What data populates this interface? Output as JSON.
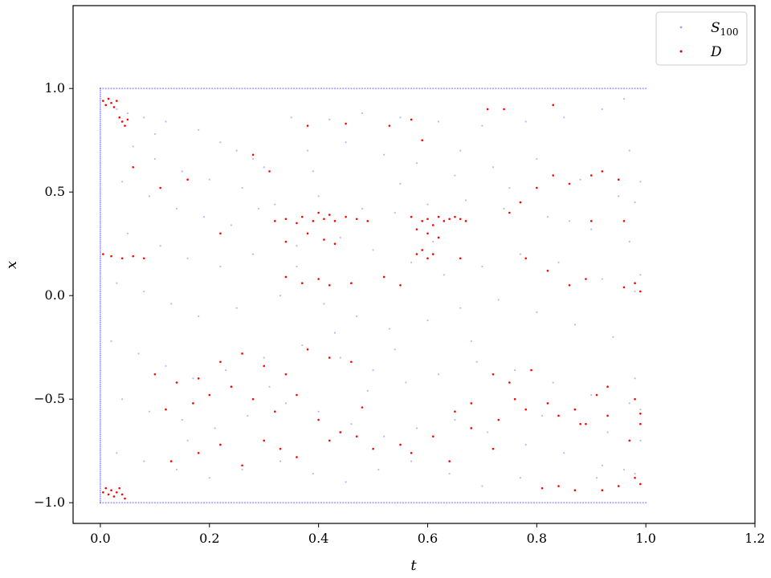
{
  "chart_data": {
    "type": "scatter",
    "xlabel": "t",
    "ylabel": "x",
    "xlim": [
      -0.05,
      1.2
    ],
    "ylim": [
      -1.1,
      1.4
    ],
    "xticks": [
      "0.0",
      "0.2",
      "0.4",
      "0.6",
      "0.8",
      "1.0",
      "1.2"
    ],
    "xtick_values": [
      0.0,
      0.2,
      0.4,
      0.6,
      0.8,
      1.0,
      1.2
    ],
    "yticks": [
      "−1.0",
      "−0.5",
      "0.0",
      "0.5",
      "1.0"
    ],
    "ytick_values": [
      -1.0,
      -0.5,
      0.0,
      0.5,
      1.0
    ],
    "grid": false,
    "legend_position": "top-right",
    "series": [
      {
        "name": "S",
        "name_subscript": "100",
        "color": "#6464f0",
        "points": [
          [
            0.03,
            0.9
          ],
          [
            0.05,
            0.88
          ],
          [
            0.08,
            0.86
          ],
          [
            0.12,
            0.84
          ],
          [
            0.18,
            0.8
          ],
          [
            0.22,
            0.74
          ],
          [
            0.25,
            0.7
          ],
          [
            0.28,
            0.66
          ],
          [
            0.35,
            0.86
          ],
          [
            0.42,
            0.85
          ],
          [
            0.48,
            0.88
          ],
          [
            0.55,
            0.86
          ],
          [
            0.62,
            0.84
          ],
          [
            0.7,
            0.82
          ],
          [
            0.78,
            0.84
          ],
          [
            0.85,
            0.86
          ],
          [
            0.92,
            0.9
          ],
          [
            0.96,
            0.95
          ],
          [
            0.06,
            0.72
          ],
          [
            0.1,
            0.66
          ],
          [
            0.15,
            0.6
          ],
          [
            0.2,
            0.56
          ],
          [
            0.3,
            0.62
          ],
          [
            0.38,
            0.7
          ],
          [
            0.45,
            0.74
          ],
          [
            0.52,
            0.68
          ],
          [
            0.58,
            0.64
          ],
          [
            0.65,
            0.58
          ],
          [
            0.72,
            0.62
          ],
          [
            0.8,
            0.66
          ],
          [
            0.88,
            0.56
          ],
          [
            0.95,
            0.48
          ],
          [
            0.98,
            0.45
          ],
          [
            0.04,
            0.55
          ],
          [
            0.09,
            0.48
          ],
          [
            0.14,
            0.42
          ],
          [
            0.19,
            0.38
          ],
          [
            0.24,
            0.34
          ],
          [
            0.32,
            0.44
          ],
          [
            0.4,
            0.48
          ],
          [
            0.48,
            0.42
          ],
          [
            0.54,
            0.4
          ],
          [
            0.6,
            0.44
          ],
          [
            0.67,
            0.46
          ],
          [
            0.74,
            0.42
          ],
          [
            0.82,
            0.38
          ],
          [
            0.9,
            0.32
          ],
          [
            0.97,
            0.26
          ],
          [
            0.05,
            0.3
          ],
          [
            0.11,
            0.24
          ],
          [
            0.16,
            0.18
          ],
          [
            0.22,
            0.14
          ],
          [
            0.28,
            0.2
          ],
          [
            0.36,
            0.24
          ],
          [
            0.44,
            0.28
          ],
          [
            0.5,
            0.22
          ],
          [
            0.57,
            0.16
          ],
          [
            0.63,
            0.1
          ],
          [
            0.7,
            0.14
          ],
          [
            0.77,
            0.2
          ],
          [
            0.84,
            0.16
          ],
          [
            0.92,
            0.08
          ],
          [
            0.98,
            0.02
          ],
          [
            0.03,
            0.06
          ],
          [
            0.08,
            0.02
          ],
          [
            0.13,
            -0.04
          ],
          [
            0.18,
            -0.1
          ],
          [
            0.25,
            -0.06
          ],
          [
            0.33,
            0.0
          ],
          [
            0.41,
            -0.04
          ],
          [
            0.47,
            -0.1
          ],
          [
            0.53,
            -0.16
          ],
          [
            0.6,
            -0.12
          ],
          [
            0.66,
            -0.06
          ],
          [
            0.73,
            -0.02
          ],
          [
            0.8,
            -0.08
          ],
          [
            0.87,
            -0.14
          ],
          [
            0.94,
            -0.2
          ],
          [
            0.02,
            -0.22
          ],
          [
            0.07,
            -0.28
          ],
          [
            0.12,
            -0.34
          ],
          [
            0.17,
            -0.4
          ],
          [
            0.23,
            -0.36
          ],
          [
            0.3,
            -0.3
          ],
          [
            0.37,
            -0.24
          ],
          [
            0.44,
            -0.3
          ],
          [
            0.5,
            -0.36
          ],
          [
            0.56,
            -0.42
          ],
          [
            0.62,
            -0.38
          ],
          [
            0.69,
            -0.32
          ],
          [
            0.76,
            -0.36
          ],
          [
            0.83,
            -0.42
          ],
          [
            0.9,
            -0.48
          ],
          [
            0.97,
            -0.52
          ],
          [
            0.04,
            -0.5
          ],
          [
            0.09,
            -0.56
          ],
          [
            0.15,
            -0.6
          ],
          [
            0.21,
            -0.64
          ],
          [
            0.27,
            -0.58
          ],
          [
            0.34,
            -0.52
          ],
          [
            0.4,
            -0.56
          ],
          [
            0.46,
            -0.62
          ],
          [
            0.52,
            -0.68
          ],
          [
            0.58,
            -0.64
          ],
          [
            0.65,
            -0.6
          ],
          [
            0.71,
            -0.66
          ],
          [
            0.78,
            -0.72
          ],
          [
            0.85,
            -0.76
          ],
          [
            0.92,
            -0.82
          ],
          [
            0.98,
            -0.86
          ],
          [
            0.03,
            -0.76
          ],
          [
            0.08,
            -0.8
          ],
          [
            0.14,
            -0.84
          ],
          [
            0.2,
            -0.88
          ],
          [
            0.26,
            -0.84
          ],
          [
            0.33,
            -0.8
          ],
          [
            0.39,
            -0.86
          ],
          [
            0.45,
            -0.9
          ],
          [
            0.51,
            -0.84
          ],
          [
            0.57,
            -0.8
          ],
          [
            0.64,
            -0.86
          ],
          [
            0.7,
            -0.92
          ],
          [
            0.77,
            -0.88
          ],
          [
            0.84,
            -0.92
          ],
          [
            0.91,
            -0.88
          ],
          [
            0.96,
            -0.84
          ],
          [
            0.99,
            -0.7
          ],
          [
            0.99,
            -0.55
          ],
          [
            0.98,
            -0.4
          ],
          [
            0.99,
            0.1
          ],
          [
            0.99,
            0.55
          ],
          [
            0.97,
            0.7
          ],
          [
            0.29,
            0.42
          ],
          [
            0.36,
            0.14
          ],
          [
            0.43,
            -0.18
          ],
          [
            0.49,
            -0.46
          ],
          [
            0.55,
            0.54
          ],
          [
            0.61,
            0.26
          ],
          [
            0.68,
            -0.22
          ],
          [
            0.75,
            0.52
          ],
          [
            0.81,
            -0.58
          ],
          [
            0.86,
            0.36
          ],
          [
            0.93,
            -0.66
          ],
          [
            0.1,
            0.78
          ],
          [
            0.16,
            -0.7
          ],
          [
            0.26,
            0.52
          ],
          [
            0.31,
            -0.44
          ],
          [
            0.39,
            0.6
          ],
          [
            0.54,
            -0.26
          ],
          [
            0.66,
            0.7
          ]
        ],
        "boundary_t0": [
          -1.0,
          -0.9,
          -0.8,
          -0.7,
          -0.6,
          -0.5,
          -0.4,
          -0.3,
          -0.2,
          -0.1,
          0.0,
          0.1,
          0.2,
          0.3,
          0.4,
          0.5,
          0.6,
          0.7,
          0.8,
          0.9,
          1.0
        ],
        "boundary_x_top": 1.0,
        "boundary_x_bottom": -1.0
      },
      {
        "name": "D",
        "color": "#ff0000",
        "points": [
          [
            0.005,
            0.94
          ],
          [
            0.01,
            0.92
          ],
          [
            0.015,
            0.95
          ],
          [
            0.02,
            0.93
          ],
          [
            0.025,
            0.91
          ],
          [
            0.03,
            0.94
          ],
          [
            0.035,
            0.86
          ],
          [
            0.04,
            0.84
          ],
          [
            0.045,
            0.82
          ],
          [
            0.05,
            0.85
          ],
          [
            0.005,
            -0.95
          ],
          [
            0.01,
            -0.93
          ],
          [
            0.015,
            -0.96
          ],
          [
            0.02,
            -0.94
          ],
          [
            0.025,
            -0.97
          ],
          [
            0.03,
            -0.95
          ],
          [
            0.035,
            -0.93
          ],
          [
            0.04,
            -0.96
          ],
          [
            0.045,
            -0.98
          ],
          [
            0.005,
            0.2
          ],
          [
            0.02,
            0.19
          ],
          [
            0.04,
            0.18
          ],
          [
            0.06,
            0.19
          ],
          [
            0.08,
            0.18
          ],
          [
            0.06,
            0.62
          ],
          [
            0.11,
            0.52
          ],
          [
            0.16,
            0.56
          ],
          [
            0.22,
            0.3
          ],
          [
            0.28,
            0.68
          ],
          [
            0.31,
            0.6
          ],
          [
            0.32,
            0.36
          ],
          [
            0.34,
            0.37
          ],
          [
            0.36,
            0.35
          ],
          [
            0.37,
            0.38
          ],
          [
            0.39,
            0.36
          ],
          [
            0.4,
            0.4
          ],
          [
            0.41,
            0.37
          ],
          [
            0.42,
            0.39
          ],
          [
            0.43,
            0.36
          ],
          [
            0.45,
            0.38
          ],
          [
            0.47,
            0.37
          ],
          [
            0.49,
            0.36
          ],
          [
            0.38,
            0.3
          ],
          [
            0.41,
            0.27
          ],
          [
            0.43,
            0.25
          ],
          [
            0.34,
            0.26
          ],
          [
            0.57,
            0.38
          ],
          [
            0.59,
            0.36
          ],
          [
            0.6,
            0.37
          ],
          [
            0.61,
            0.34
          ],
          [
            0.62,
            0.38
          ],
          [
            0.63,
            0.36
          ],
          [
            0.64,
            0.37
          ],
          [
            0.65,
            0.38
          ],
          [
            0.66,
            0.37
          ],
          [
            0.67,
            0.36
          ],
          [
            0.58,
            0.32
          ],
          [
            0.6,
            0.3
          ],
          [
            0.62,
            0.28
          ],
          [
            0.59,
            0.22
          ],
          [
            0.6,
            0.18
          ],
          [
            0.61,
            0.2
          ],
          [
            0.58,
            0.2
          ],
          [
            0.53,
            0.82
          ],
          [
            0.57,
            0.85
          ],
          [
            0.59,
            0.75
          ],
          [
            0.71,
            0.9
          ],
          [
            0.74,
            0.9
          ],
          [
            0.83,
            0.92
          ],
          [
            0.38,
            0.82
          ],
          [
            0.45,
            0.83
          ],
          [
            0.34,
            0.09
          ],
          [
            0.37,
            0.06
          ],
          [
            0.4,
            0.08
          ],
          [
            0.42,
            0.05
          ],
          [
            0.46,
            0.06
          ],
          [
            0.52,
            0.09
          ],
          [
            0.55,
            0.05
          ],
          [
            0.66,
            0.18
          ],
          [
            0.78,
            0.18
          ],
          [
            0.82,
            0.12
          ],
          [
            0.86,
            0.05
          ],
          [
            0.89,
            0.08
          ],
          [
            0.96,
            0.04
          ],
          [
            0.98,
            0.06
          ],
          [
            0.99,
            0.02
          ],
          [
            0.75,
            0.4
          ],
          [
            0.77,
            0.45
          ],
          [
            0.8,
            0.52
          ],
          [
            0.83,
            0.58
          ],
          [
            0.86,
            0.54
          ],
          [
            0.9,
            0.58
          ],
          [
            0.92,
            0.6
          ],
          [
            0.95,
            0.56
          ],
          [
            0.96,
            0.36
          ],
          [
            0.9,
            0.36
          ],
          [
            0.1,
            -0.38
          ],
          [
            0.14,
            -0.42
          ],
          [
            0.18,
            -0.4
          ],
          [
            0.22,
            -0.32
          ],
          [
            0.26,
            -0.28
          ],
          [
            0.3,
            -0.34
          ],
          [
            0.34,
            -0.38
          ],
          [
            0.38,
            -0.26
          ],
          [
            0.42,
            -0.3
          ],
          [
            0.46,
            -0.32
          ],
          [
            0.12,
            -0.55
          ],
          [
            0.17,
            -0.52
          ],
          [
            0.2,
            -0.48
          ],
          [
            0.24,
            -0.44
          ],
          [
            0.28,
            -0.5
          ],
          [
            0.32,
            -0.56
          ],
          [
            0.36,
            -0.48
          ],
          [
            0.4,
            -0.6
          ],
          [
            0.44,
            -0.66
          ],
          [
            0.48,
            -0.54
          ],
          [
            0.13,
            -0.8
          ],
          [
            0.18,
            -0.76
          ],
          [
            0.22,
            -0.72
          ],
          [
            0.26,
            -0.82
          ],
          [
            0.3,
            -0.7
          ],
          [
            0.33,
            -0.74
          ],
          [
            0.36,
            -0.78
          ],
          [
            0.42,
            -0.7
          ],
          [
            0.47,
            -0.68
          ],
          [
            0.5,
            -0.74
          ],
          [
            0.55,
            -0.72
          ],
          [
            0.57,
            -0.76
          ],
          [
            0.61,
            -0.68
          ],
          [
            0.64,
            -0.8
          ],
          [
            0.68,
            -0.64
          ],
          [
            0.72,
            -0.74
          ],
          [
            0.76,
            -0.5
          ],
          [
            0.78,
            -0.55
          ],
          [
            0.82,
            -0.52
          ],
          [
            0.84,
            -0.58
          ],
          [
            0.87,
            -0.55
          ],
          [
            0.88,
            -0.62
          ],
          [
            0.91,
            -0.48
          ],
          [
            0.93,
            -0.44
          ],
          [
            0.98,
            -0.5
          ],
          [
            0.99,
            -0.57
          ],
          [
            0.99,
            -0.62
          ],
          [
            0.97,
            -0.7
          ],
          [
            0.81,
            -0.93
          ],
          [
            0.84,
            -0.92
          ],
          [
            0.87,
            -0.94
          ],
          [
            0.92,
            -0.94
          ],
          [
            0.95,
            -0.92
          ],
          [
            0.98,
            -0.88
          ],
          [
            0.99,
            -0.91
          ],
          [
            0.72,
            -0.38
          ],
          [
            0.75,
            -0.42
          ],
          [
            0.79,
            -0.36
          ],
          [
            0.89,
            -0.62
          ],
          [
            0.93,
            -0.58
          ],
          [
            0.68,
            -0.52
          ],
          [
            0.65,
            -0.56
          ],
          [
            0.73,
            -0.6
          ]
        ]
      }
    ]
  }
}
